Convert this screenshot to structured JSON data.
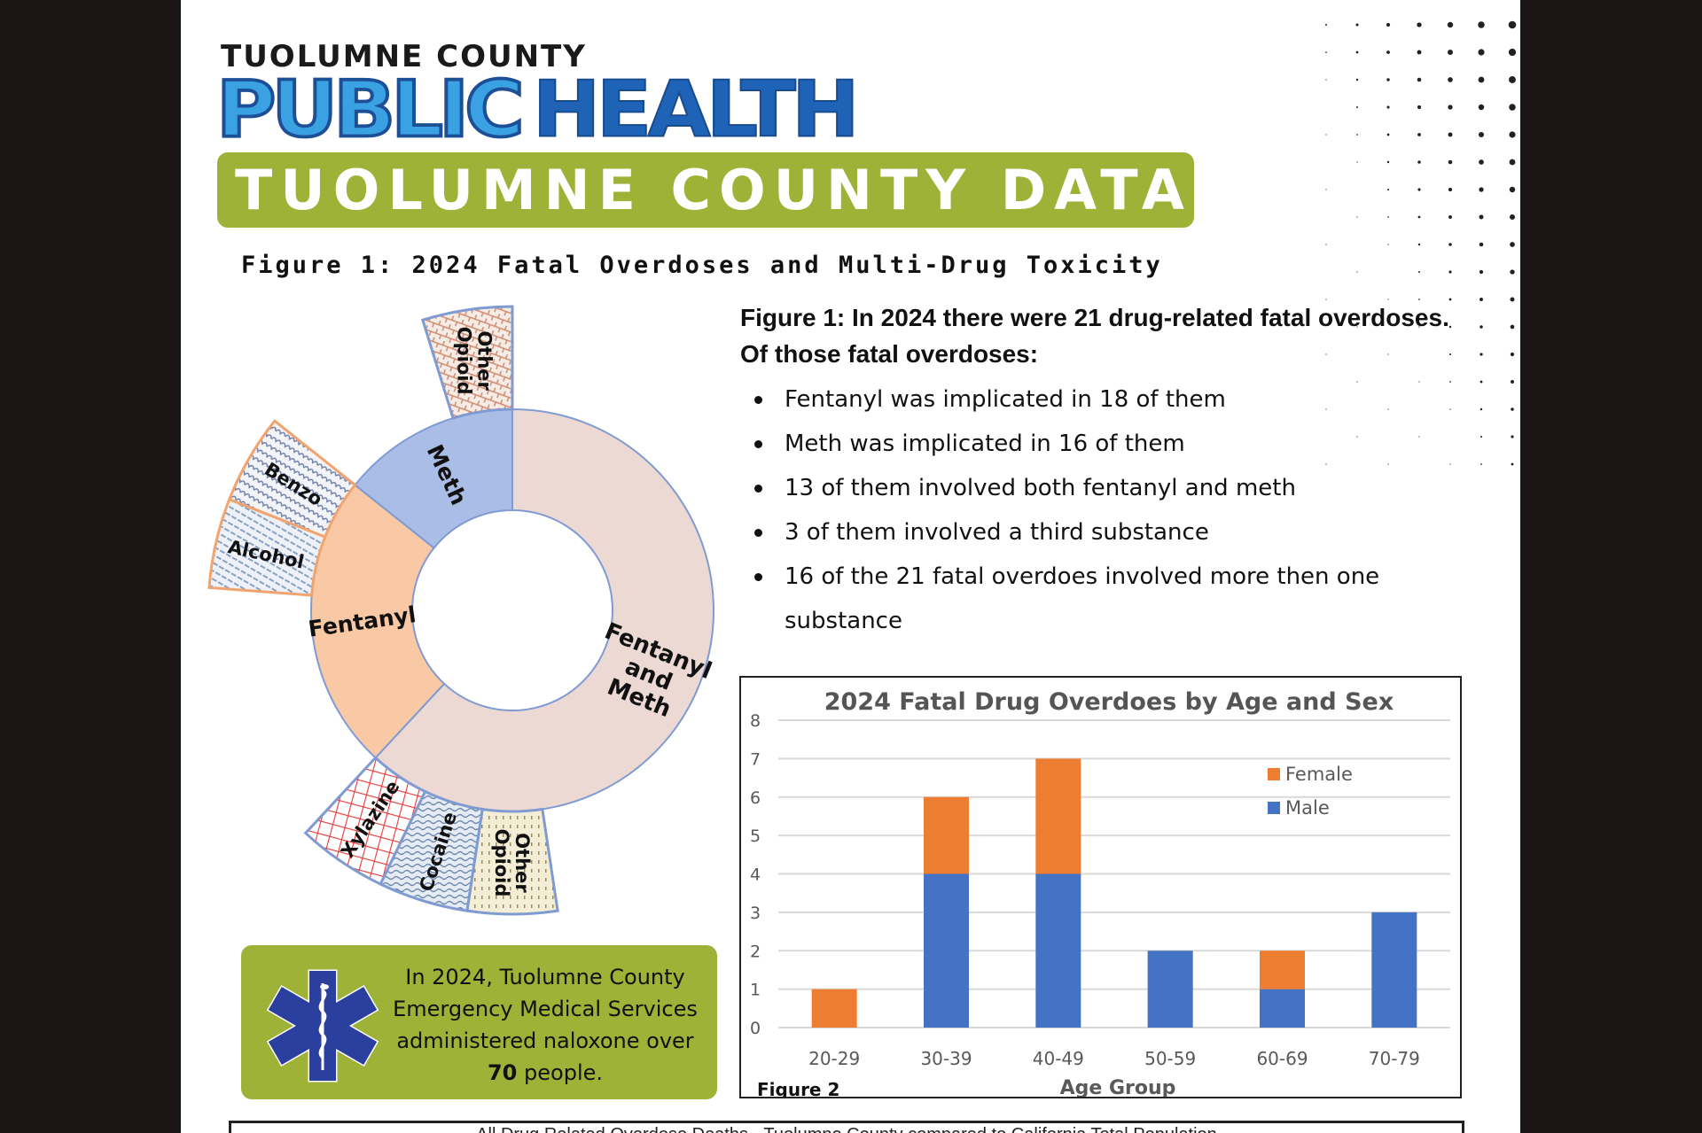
{
  "header": {
    "org_name": "TUOLUMNE COUNTY",
    "logo_word1": "PUBLIC",
    "logo_word2": "HEALTH",
    "banner": "TUOLUMNE COUNTY DATA"
  },
  "figure1": {
    "title": "Figure 1: 2024 Fatal Overdoses and Multi-Drug Toxicity",
    "summary_heading": "Figure 1: In 2024 there were 21 drug-related fatal overdoses. Of those fatal overdoses:",
    "bullets": [
      "Fentanyl was implicated in 18 of them",
      "Meth was implicated in 16 of them",
      "13 of them involved both fentanyl and meth",
      "3 of them involved a third substance",
      "16 of the 21 fatal overdoes involved more then one substance"
    ]
  },
  "ems_box": {
    "icon": "star-of-life-icon",
    "text_before": "In  2024, Tuolumne County Emergency Medical Services administered naloxone over ",
    "count": "70",
    "text_after": " people."
  },
  "bottom_box": {
    "title": "All Drug Related Overdose Deaths - Tuolumne County compared to California Total Population"
  },
  "chart_data": [
    {
      "type": "sunburst",
      "total": 21,
      "inner": [
        {
          "label": "Fentanyl and Meth",
          "value": 13,
          "color": "#ecd9d3"
        },
        {
          "label": "Fentanyl",
          "value": 5,
          "color": "#f9c9a6"
        },
        {
          "label": "Meth",
          "value": 3,
          "color": "#a9bde6"
        }
      ],
      "outer": [
        {
          "label": "Other Opioid",
          "parent": "Fentanyl and Meth",
          "value": 1,
          "pattern": "dots",
          "color": "#e9dfb8"
        },
        {
          "label": "Cocaine",
          "parent": "Fentanyl and Meth",
          "value": 1,
          "pattern": "wave",
          "color": "#8fa9c8"
        },
        {
          "label": "Xylazine",
          "parent": "Fentanyl and Meth",
          "value": 1,
          "pattern": "grid",
          "color": "#e63a3a"
        },
        {
          "label": "Alcohol",
          "parent": "Fentanyl",
          "value": 1,
          "pattern": "diagonal",
          "color": "#9fb3cf"
        },
        {
          "label": "Benzo",
          "parent": "Fentanyl",
          "value": 1,
          "pattern": "scales",
          "color": "#8898b8"
        },
        {
          "label": "Other Opioid",
          "parent": "Meth",
          "value": 1,
          "pattern": "brick",
          "color": "#e3a48a"
        }
      ]
    },
    {
      "type": "bar",
      "stacked": true,
      "title": "2024 Fatal Drug Overdoes by Age and Sex",
      "xlabel": "Age Group",
      "ylabel": "",
      "caption": "Figure 2",
      "categories": [
        "20-29",
        "30-39",
        "40-49",
        "50-59",
        "60-69",
        "70-79"
      ],
      "series": [
        {
          "name": "Male",
          "values": [
            0,
            4,
            4,
            2,
            1,
            3
          ],
          "color": "#4472c4"
        },
        {
          "name": "Female",
          "values": [
            1,
            2,
            3,
            0,
            1,
            0
          ],
          "color": "#ed7d31"
        }
      ],
      "legend_order": [
        "Female",
        "Male"
      ],
      "legend_position": "top-right",
      "ylim": [
        0,
        8
      ],
      "yticks": [
        0,
        1,
        2,
        3,
        4,
        5,
        6,
        7,
        8
      ],
      "grid": true
    }
  ]
}
